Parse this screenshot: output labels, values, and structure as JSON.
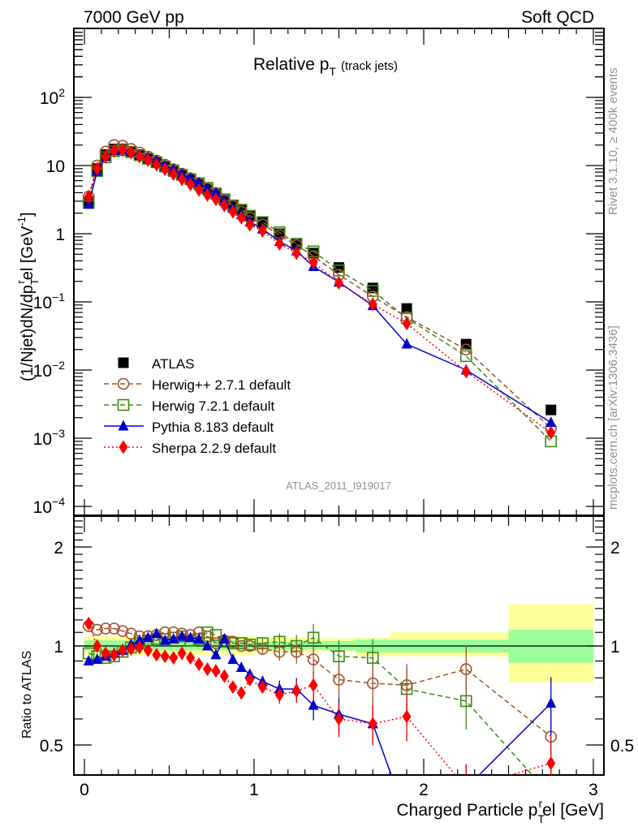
{
  "header": {
    "left": "7000 GeV pp",
    "right": "Soft QCD"
  },
  "side_text": {
    "rivet": "Rivet 3.1.10, ≥ 400k events",
    "mcplots": "mcplots.cern.ch [arXiv:1306.3436]"
  },
  "watermark": "ATLAS_2011_I919017",
  "chart_data": [
    {
      "type": "line",
      "panel": "main",
      "title": "Relative p_T (track jets)",
      "title_main": "Relative p",
      "title_sub": "T",
      "title_extra": "(track jets)",
      "ylabel": "(1/Njet)dN/dp_T^rel [GeV^-1]",
      "ylabel_parts": {
        "a": "(1/Njet)dN/dp",
        "sub": "T",
        "sup": "r",
        "b": "el [GeV",
        "sup2": "-1",
        "c": "]"
      },
      "yscale": "log",
      "ylim": [
        0.0001,
        1000
      ],
      "xlim": [
        -0.06,
        3.07
      ],
      "ytick_labels": [
        {
          "v": 100,
          "base": "10",
          "exp": "2"
        },
        {
          "v": 10,
          "base": "10",
          "exp": ""
        },
        {
          "v": 1,
          "base": "1",
          "exp": ""
        },
        {
          "v": 0.1,
          "base": "10",
          "exp": "−1"
        },
        {
          "v": 0.01,
          "base": "10",
          "exp": "−2"
        },
        {
          "v": 0.001,
          "base": "10",
          "exp": "−3"
        },
        {
          "v": 0.0001,
          "base": "10",
          "exp": "−4"
        }
      ],
      "legend_position": "lower-left",
      "x": [
        0.025,
        0.075,
        0.125,
        0.175,
        0.225,
        0.275,
        0.325,
        0.375,
        0.425,
        0.475,
        0.525,
        0.575,
        0.625,
        0.675,
        0.725,
        0.775,
        0.825,
        0.875,
        0.925,
        0.975,
        1.05,
        1.15,
        1.25,
        1.35,
        1.5,
        1.7,
        1.9,
        2.25,
        2.75
      ],
      "series": [
        {
          "name": "ATLAS",
          "color": "#000000",
          "marker": "square",
          "line": "none",
          "values": [
            3.0,
            9.0,
            14.5,
            17.5,
            17.5,
            16.0,
            14.0,
            12.5,
            11.0,
            9.5,
            8.2,
            7.2,
            6.2,
            5.3,
            4.5,
            3.8,
            3.1,
            2.6,
            2.2,
            1.8,
            1.45,
            1.0,
            0.72,
            0.52,
            0.32,
            0.16,
            0.08,
            0.024,
            0.0026
          ]
        },
        {
          "name": "Herwig++ 2.7.1 default",
          "color": "#a0522d",
          "marker": "open-circle",
          "line": "dashed",
          "values": [
            3.5,
            10.0,
            16.0,
            20.0,
            19.5,
            17.5,
            15.5,
            13.5,
            11.8,
            10.3,
            8.8,
            7.6,
            6.5,
            5.5,
            4.6,
            3.8,
            3.1,
            2.55,
            2.1,
            1.72,
            1.37,
            0.96,
            0.68,
            0.47,
            0.25,
            0.12,
            0.06,
            0.02,
            0.0014
          ]
        },
        {
          "name": "Herwig 7.2.1 default",
          "color": "#3a8a14",
          "marker": "open-square",
          "line": "dashed",
          "values": [
            2.85,
            8.3,
            13.2,
            16.3,
            16.8,
            15.8,
            14.2,
            12.6,
            11.2,
            9.7,
            8.5,
            7.3,
            6.3,
            5.5,
            4.7,
            3.9,
            3.2,
            2.6,
            2.25,
            1.83,
            1.48,
            1.05,
            0.71,
            0.55,
            0.29,
            0.145,
            0.058,
            0.016,
            0.0009
          ]
        },
        {
          "name": "Pythia 8.183 default",
          "color": "#0000cc",
          "marker": "triangle",
          "line": "solid",
          "values": [
            2.7,
            8.2,
            13.5,
            16.5,
            16.9,
            16.2,
            14.5,
            13.2,
            11.8,
            10.0,
            8.8,
            7.5,
            6.5,
            5.6,
            4.5,
            4.0,
            3.0,
            2.35,
            1.9,
            1.5,
            1.17,
            0.77,
            0.56,
            0.33,
            0.195,
            0.088,
            0.024,
            0.01,
            0.0017
          ]
        },
        {
          "name": "Sherpa 2.2.9 default",
          "color": "#ff0000",
          "marker": "diamond",
          "line": "dotted",
          "values": [
            3.5,
            9.0,
            13.5,
            16.5,
            17.0,
            15.5,
            13.5,
            12.0,
            10.3,
            8.8,
            7.5,
            6.3,
            5.3,
            4.4,
            3.7,
            3.2,
            2.6,
            2.1,
            1.72,
            1.35,
            1.1,
            0.71,
            0.52,
            0.38,
            0.19,
            0.092,
            0.048,
            0.0095,
            0.0012
          ]
        }
      ]
    },
    {
      "type": "line",
      "panel": "ratio",
      "ylabel": "Ratio to ATLAS",
      "xlabel": "Charged Particle p_T^rel [GeV]",
      "xlabel_parts": {
        "a": "Charged Particle p",
        "sub": "T",
        "sup": "r",
        "b": "el [GeV]"
      },
      "yscale": "log",
      "ylim": [
        0.405,
        2.48
      ],
      "xlim": [
        -0.06,
        3.07
      ],
      "xticks": [
        0,
        1,
        2,
        3
      ],
      "xtick_labels": [
        "0",
        "1",
        "2",
        "3"
      ],
      "ytick_labels": [
        {
          "v": 2,
          "label": "2"
        },
        {
          "v": 1,
          "label": "1"
        },
        {
          "v": 0.5,
          "label": "0.5"
        }
      ],
      "bands": {
        "edges": [
          0.0,
          1.0,
          1.1,
          1.2,
          1.3,
          1.4,
          1.6,
          1.8,
          2.0,
          2.5,
          3.0
        ],
        "inner_lo": [
          0.97,
          0.975,
          0.975,
          0.975,
          0.975,
          0.97,
          0.955,
          0.955,
          0.955,
          0.89,
          0.89
        ],
        "inner_hi": [
          1.04,
          1.03,
          1.03,
          1.03,
          1.03,
          1.035,
          1.045,
          1.045,
          1.045,
          1.12,
          1.12
        ],
        "outer_lo": [
          0.94,
          0.955,
          0.955,
          0.955,
          0.955,
          0.96,
          0.93,
          0.93,
          0.93,
          0.775,
          0.775
        ],
        "outer_hi": [
          1.07,
          1.06,
          1.06,
          1.06,
          1.06,
          1.055,
          1.06,
          1.1,
          1.1,
          1.34,
          1.34
        ],
        "inner_color": "#99ff99",
        "outer_color": "#ffff99"
      },
      "x": [
        0.025,
        0.075,
        0.125,
        0.175,
        0.225,
        0.275,
        0.325,
        0.375,
        0.425,
        0.475,
        0.525,
        0.575,
        0.625,
        0.675,
        0.725,
        0.775,
        0.825,
        0.875,
        0.925,
        0.975,
        1.05,
        1.15,
        1.25,
        1.35,
        1.5,
        1.7,
        1.9,
        2.25,
        2.75
      ],
      "series": [
        {
          "name": "Herwig++ 2.7.1 default",
          "color": "#a0522d",
          "marker": "open-circle",
          "line": "dashed",
          "values": [
            1.15,
            1.12,
            1.13,
            1.13,
            1.11,
            1.09,
            1.07,
            1.07,
            1.08,
            1.1,
            1.1,
            1.09,
            1.08,
            1.1,
            1.07,
            1.02,
            1.04,
            1.03,
            1.0,
            1.0,
            0.98,
            0.96,
            0.96,
            0.91,
            0.79,
            0.77,
            0.76,
            0.85,
            0.53
          ]
        },
        {
          "name": "Herwig 7.2.1 default",
          "color": "#3a8a14",
          "marker": "open-square",
          "line": "dashed",
          "values": [
            0.95,
            0.93,
            0.92,
            0.93,
            0.96,
            0.99,
            1.02,
            1.04,
            1.05,
            1.05,
            1.06,
            1.07,
            1.04,
            1.05,
            1.1,
            1.08,
            1.03,
            1.02,
            1.02,
            1.01,
            1.02,
            1.03,
            1.0,
            1.06,
            0.93,
            0.92,
            0.74,
            0.68,
            0.35
          ]
        },
        {
          "name": "Pythia 8.183 default",
          "color": "#0000cc",
          "marker": "triangle",
          "line": "solid",
          "values": [
            0.9,
            0.91,
            0.93,
            0.95,
            0.97,
            1.01,
            1.04,
            1.06,
            1.09,
            1.04,
            1.05,
            1.07,
            1.06,
            1.05,
            1.0,
            0.94,
            1.05,
            0.91,
            0.86,
            0.82,
            0.78,
            0.74,
            0.74,
            0.66,
            0.62,
            0.58,
            0.3,
            0.37,
            0.67
          ]
        },
        {
          "name": "Sherpa 2.2.9 default",
          "color": "#ff0000",
          "marker": "diamond",
          "line": "dotted",
          "values": [
            1.17,
            1.0,
            0.95,
            0.94,
            0.97,
            0.98,
            0.99,
            0.97,
            0.94,
            0.93,
            0.92,
            0.95,
            0.92,
            0.88,
            0.85,
            0.84,
            0.81,
            0.75,
            0.72,
            0.79,
            0.75,
            0.71,
            0.73,
            0.76,
            0.6,
            0.58,
            0.61,
            0.37,
            0.44
          ]
        }
      ]
    }
  ],
  "legend": [
    {
      "label": "ATLAS"
    },
    {
      "label": "Herwig++ 2.7.1 default"
    },
    {
      "label": "Herwig 7.2.1 default"
    },
    {
      "label": "Pythia 8.183 default"
    },
    {
      "label": "Sherpa 2.2.9 default"
    }
  ]
}
